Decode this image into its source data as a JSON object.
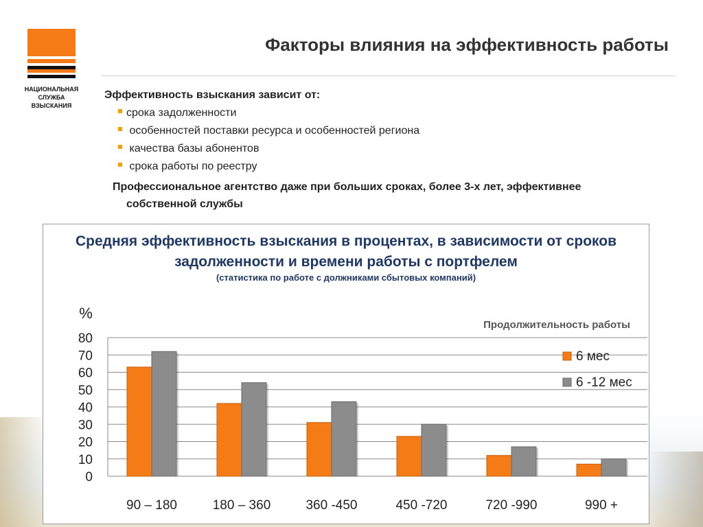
{
  "logo": {
    "name": "НАЦИОНАЛЬНАЯ\nСЛУЖБА\nВЗЫСКАНИЯ"
  },
  "title": "Факторы влияния на эффективность работы",
  "content": {
    "lead": "Эффективность взыскания  зависит от:",
    "bullets": [
      "срока  задолженности",
      " особенностей поставки ресурса и особенностей региона",
      " качества  базы абонентов",
      " срока работы по реестру"
    ],
    "conclusion_line1": "Профессиональное агентство даже при больших сроках, более 3-х лет, эффективнее",
    "conclusion_line2": "собственной службы"
  },
  "chart_data": {
    "type": "bar",
    "title": "Средняя эффективность взыскания в процентах, в зависимости от сроков задолженности  и времени работы с портфелем",
    "title_line1": "Средняя эффективность взыскания в процентах, в зависимости от сроков",
    "title_line2": "задолженности  и времени работы с портфелем",
    "subtitle": "(статистика по работе с должниками сбытовых компаний)",
    "ylabel": "%",
    "legend_title": "Продолжительность работы",
    "legend_position": "right",
    "categories": [
      "90 – 180",
      "180 – 360",
      "360 -450",
      "450 -720",
      "720 -990",
      "990 +"
    ],
    "series": [
      {
        "name": "6 мес",
        "color": "#f47b16",
        "values": [
          63,
          42,
          31,
          23,
          12,
          7
        ]
      },
      {
        "name": "6 -12 мес",
        "color": "#8c8c8c",
        "values": [
          72,
          54,
          43,
          30,
          17,
          10
        ]
      }
    ],
    "ylim": [
      0,
      80
    ],
    "yticks": [
      0,
      10,
      20,
      30,
      40,
      50,
      60,
      70,
      80
    ],
    "grid": true
  }
}
